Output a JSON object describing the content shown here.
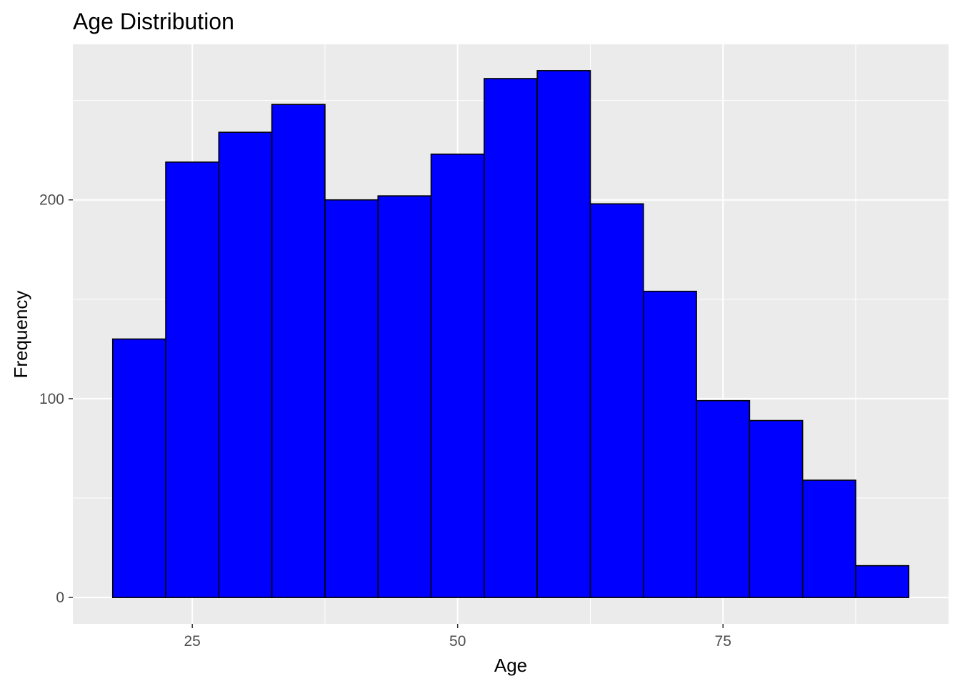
{
  "chart_data": {
    "type": "bar",
    "title": "Age Distribution",
    "xlabel": "Age",
    "ylabel": "Frequency",
    "bin_width": 5,
    "bins": [
      {
        "start": 17.5,
        "end": 22.5,
        "value": 130
      },
      {
        "start": 22.5,
        "end": 27.5,
        "value": 219
      },
      {
        "start": 27.5,
        "end": 32.5,
        "value": 234
      },
      {
        "start": 32.5,
        "end": 37.5,
        "value": 248
      },
      {
        "start": 37.5,
        "end": 42.5,
        "value": 200
      },
      {
        "start": 42.5,
        "end": 47.5,
        "value": 202
      },
      {
        "start": 47.5,
        "end": 52.5,
        "value": 223
      },
      {
        "start": 52.5,
        "end": 57.5,
        "value": 261
      },
      {
        "start": 57.5,
        "end": 62.5,
        "value": 265
      },
      {
        "start": 62.5,
        "end": 67.5,
        "value": 198
      },
      {
        "start": 67.5,
        "end": 72.5,
        "value": 154
      },
      {
        "start": 72.5,
        "end": 77.5,
        "value": 99
      },
      {
        "start": 77.5,
        "end": 82.5,
        "value": 89
      },
      {
        "start": 82.5,
        "end": 87.5,
        "value": 59
      },
      {
        "start": 87.5,
        "end": 92.5,
        "value": 16
      }
    ],
    "xlim": [
      13.75,
      96.25
    ],
    "ylim": [
      -13.25,
      278.25
    ],
    "x_ticks": [
      25,
      50,
      75
    ],
    "x_tick_labels": [
      "25",
      "50",
      "75"
    ],
    "x_minor_ticks": [
      37.5,
      62.5,
      87.5
    ],
    "y_ticks": [
      0,
      100,
      200
    ],
    "y_tick_labels": [
      "0",
      "100",
      "200"
    ],
    "y_minor_ticks": [
      50,
      150,
      250
    ],
    "fill_color": "#0000ff",
    "outline_color": "#000000",
    "panel_background": "#ebebeb",
    "grid_color": "#ffffff",
    "grid": true,
    "legend": "none"
  }
}
